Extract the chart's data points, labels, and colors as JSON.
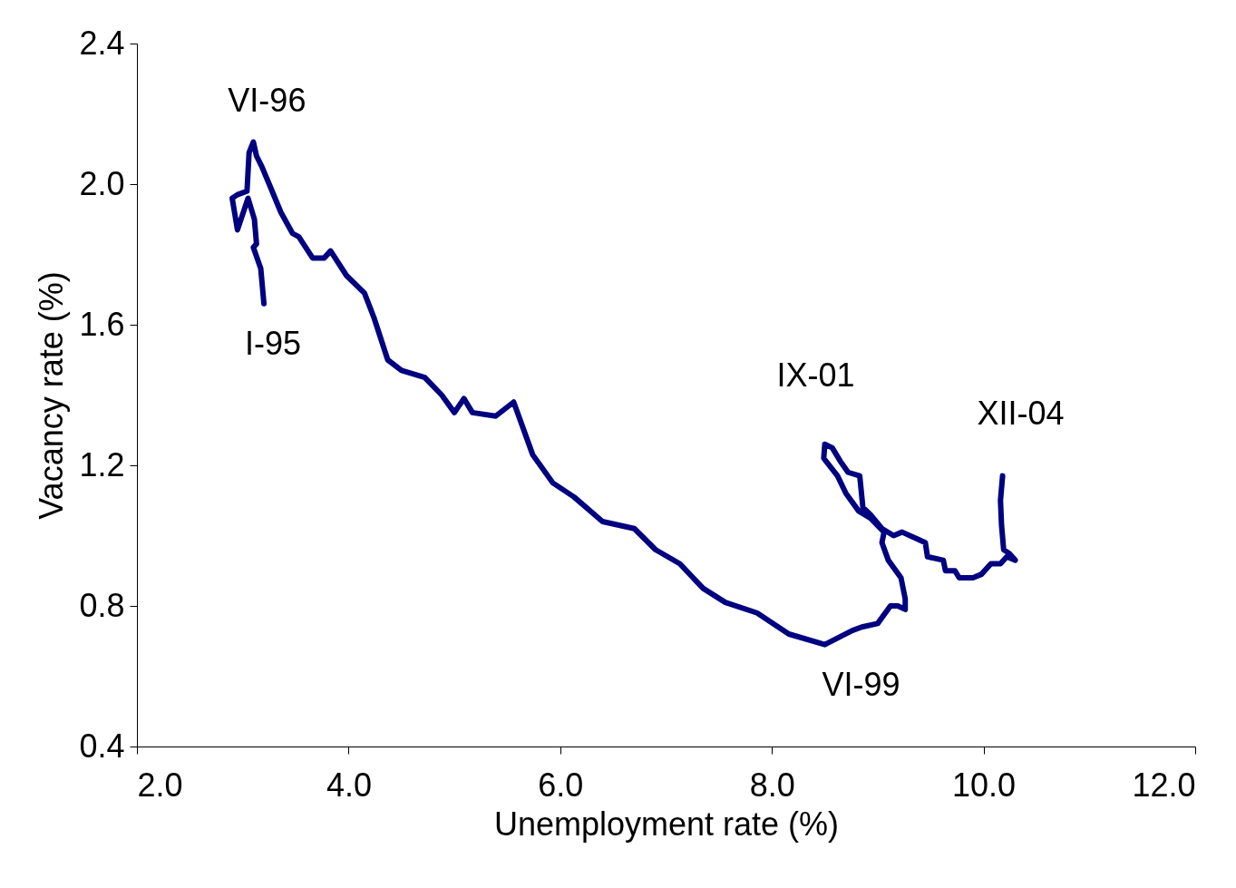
{
  "chart_data": {
    "type": "line",
    "xlabel": "Unemployment rate (%)",
    "ylabel": "Vacancy rate (%)",
    "xlim": [
      2,
      12
    ],
    "ylim": [
      0.4,
      2.4
    ],
    "xticks": [
      {
        "value": 2,
        "label": "2.0"
      },
      {
        "value": 4,
        "label": "4.0"
      },
      {
        "value": 6,
        "label": "6.0"
      },
      {
        "value": 8,
        "label": "8.0"
      },
      {
        "value": 10,
        "label": "10.0"
      },
      {
        "value": 12,
        "label": "12.0"
      }
    ],
    "yticks": [
      0.4,
      0.8,
      1.2,
      1.6,
      {
        "value": 2,
        "label": "2.0"
      },
      2.4
    ],
    "grid": false,
    "marker": "none",
    "line_style": "solid",
    "series": [
      {
        "color": "#000080",
        "x": [
          3.2,
          3.17,
          3.1,
          3.13,
          3.11,
          3.05,
          2.95,
          2.9,
          2.95,
          3.04,
          3.06,
          3.1,
          3.13,
          3.18,
          3.25,
          3.36,
          3.47,
          3.53,
          3.66,
          3.77,
          3.83,
          3.98,
          4.15,
          4.24,
          4.37,
          4.5,
          4.72,
          4.88,
          5.0,
          5.09,
          5.17,
          5.39,
          5.56,
          5.74,
          5.93,
          6.13,
          6.4,
          6.7,
          6.9,
          7.13,
          7.35,
          7.56,
          7.86,
          8.16,
          8.5,
          8.76,
          8.85,
          9.0,
          9.12,
          9.19,
          9.26,
          9.26,
          9.22,
          9.1,
          9.04,
          9.06,
          8.93,
          8.82,
          8.7,
          8.62,
          8.49,
          8.5,
          8.57,
          8.65,
          8.72,
          8.83,
          8.86,
          8.93,
          9.04,
          9.15,
          9.23,
          9.45,
          9.47,
          9.62,
          9.64,
          9.73,
          9.77,
          9.9,
          9.98,
          10.07,
          10.16,
          10.22,
          10.3,
          10.24,
          10.19,
          10.17,
          10.16,
          10.18
        ],
        "values": [
          1.66,
          1.76,
          1.82,
          1.83,
          1.9,
          1.96,
          1.87,
          1.96,
          1.97,
          1.98,
          2.09,
          2.12,
          2.08,
          2.05,
          2.0,
          1.92,
          1.86,
          1.85,
          1.79,
          1.79,
          1.81,
          1.74,
          1.69,
          1.62,
          1.5,
          1.47,
          1.45,
          1.4,
          1.35,
          1.39,
          1.35,
          1.34,
          1.38,
          1.23,
          1.15,
          1.11,
          1.04,
          1.02,
          0.96,
          0.92,
          0.85,
          0.81,
          0.78,
          0.72,
          0.69,
          0.73,
          0.74,
          0.75,
          0.8,
          0.8,
          0.79,
          0.82,
          0.88,
          0.93,
          0.98,
          1.01,
          1.05,
          1.07,
          1.12,
          1.17,
          1.22,
          1.26,
          1.25,
          1.21,
          1.18,
          1.17,
          1.08,
          1.06,
          1.02,
          1.0,
          1.01,
          0.98,
          0.94,
          0.93,
          0.9,
          0.9,
          0.88,
          0.88,
          0.89,
          0.92,
          0.92,
          0.94,
          0.93,
          0.95,
          0.96,
          1.03,
          1.1,
          1.17
        ]
      }
    ],
    "annotations": [
      {
        "text": "I-95",
        "x": 3.2,
        "y": 1.66
      },
      {
        "text": "VI-96",
        "x": 3.1,
        "y": 2.12
      },
      {
        "text": "VI-99",
        "x": 8.5,
        "y": 0.69
      },
      {
        "text": "IX-01",
        "x": 8.5,
        "y": 1.26
      },
      {
        "text": "XII-04",
        "x": 10.18,
        "y": 1.17
      }
    ]
  }
}
